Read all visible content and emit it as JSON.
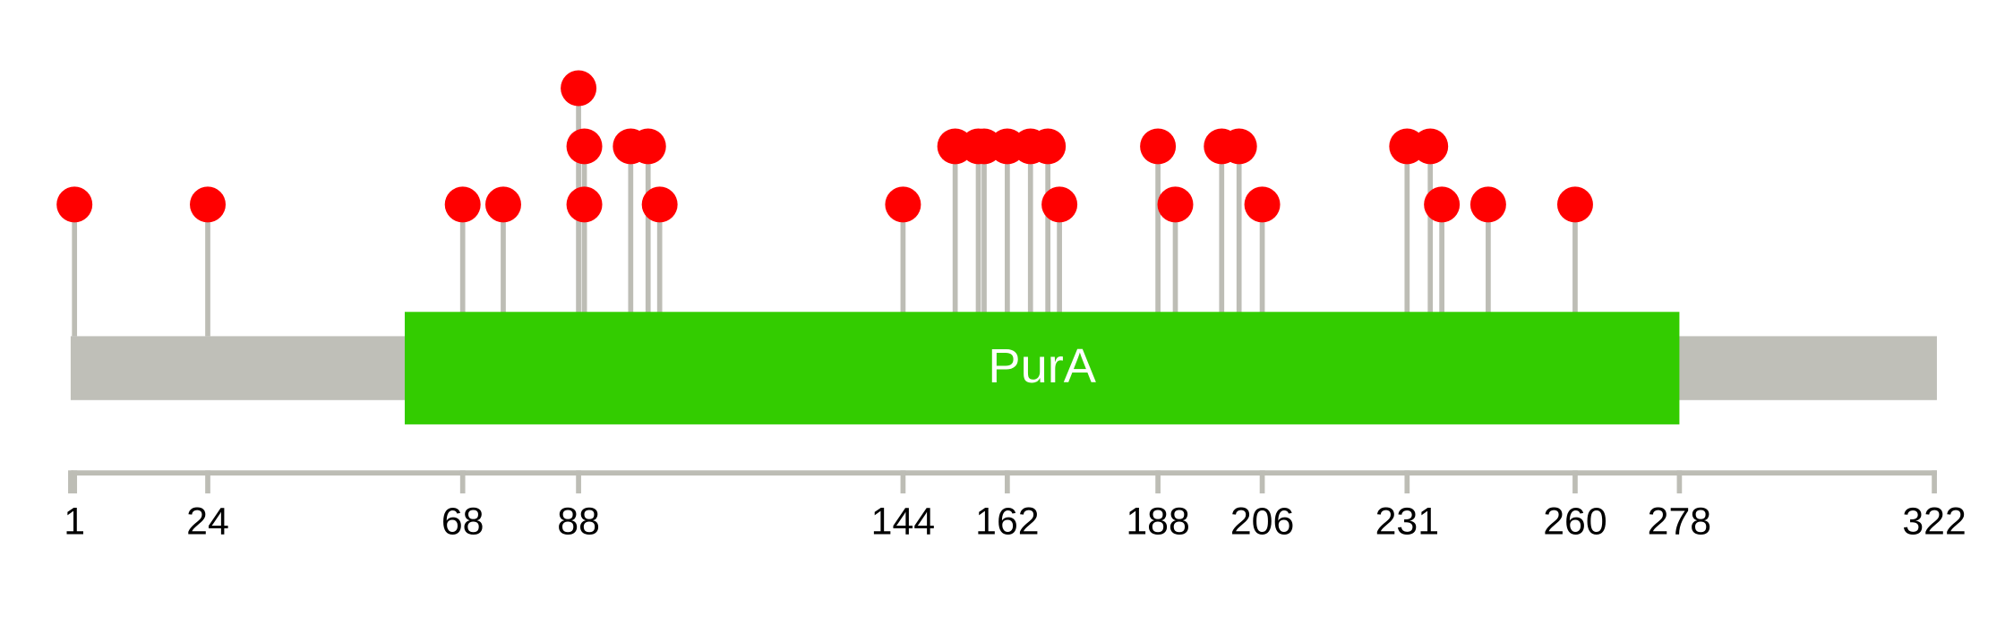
{
  "chart_data": {
    "type": "lollipop",
    "x": [
      1,
      24,
      68,
      75,
      88,
      89,
      89,
      97,
      100,
      102,
      144,
      153,
      157,
      158,
      162,
      166,
      169,
      171,
      188,
      191,
      199,
      202,
      206,
      231,
      235,
      237,
      245,
      260
    ],
    "values": [
      1,
      1,
      1,
      1,
      3,
      2,
      1,
      2,
      2,
      1,
      1,
      2,
      2,
      2,
      2,
      2,
      2,
      1,
      2,
      1,
      2,
      2,
      1,
      2,
      2,
      1,
      1,
      1
    ],
    "color": "#ff0000",
    "stem_color": "#bdbdb5",
    "backbone_color": "#bfbfb8",
    "domains": [
      {
        "name": "PurA",
        "start": 58,
        "end": 278,
        "color": "#33cc00"
      }
    ],
    "xlim": [
      1,
      322
    ],
    "ylim": [
      0,
      3
    ],
    "xticks": [
      1,
      24,
      68,
      88,
      144,
      162,
      188,
      206,
      231,
      260,
      278,
      322
    ]
  }
}
